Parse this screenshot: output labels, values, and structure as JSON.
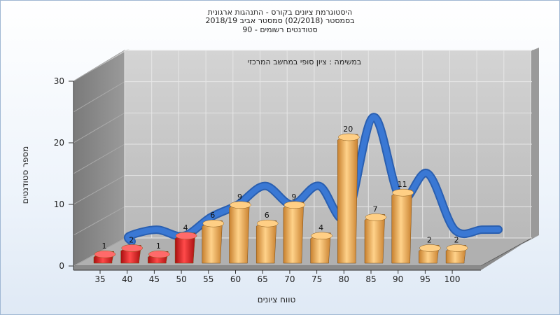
{
  "chart_data": {
    "type": "bar",
    "title_lines": [
      "היסטוגרמת ציונים בקורס - התנהגות ארגונית",
      "בסמסטר  (02/2018)  סמסטר אביב 2018/19",
      "סטודנטים רשומים - 90"
    ],
    "subtitle": "במשימה : ציון סופי במחשב המרכזי",
    "xlabel": "טווח ציונים",
    "ylabel": "מספר סטודנטים",
    "ylim": [
      0,
      30
    ],
    "yticks": [
      0,
      10,
      20,
      30
    ],
    "categories": [
      "35",
      "40",
      "45",
      "50",
      "55",
      "60",
      "65",
      "70",
      "75",
      "80",
      "85",
      "90",
      "95",
      "100"
    ],
    "values": [
      1,
      2,
      1,
      4,
      6,
      9,
      6,
      9,
      4,
      20,
      7,
      11,
      2,
      2
    ],
    "bar_colors": [
      "red",
      "red",
      "red",
      "red",
      "orange",
      "orange",
      "orange",
      "orange",
      "orange",
      "orange",
      "orange",
      "orange",
      "orange",
      "orange"
    ],
    "colors": {
      "red": "#e02020",
      "orange": "#f2a94a",
      "curve": "#3a78d4",
      "back_wall": "#c8c8c8",
      "side_wall": "#8c8c8c"
    },
    "grid": true,
    "legend": "none"
  }
}
